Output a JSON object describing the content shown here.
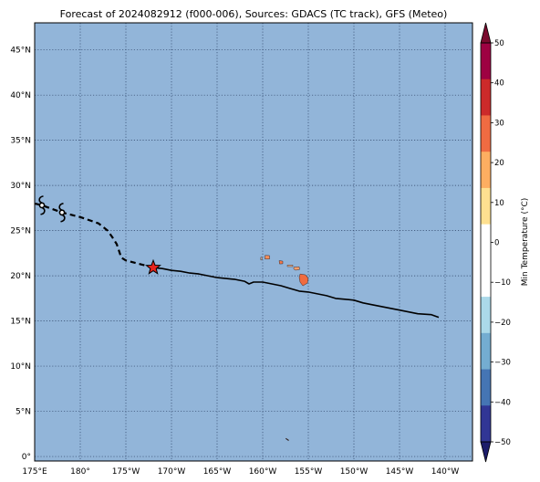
{
  "title": "Forecast of 2024082912 (f000-006), Sources: GDACS (TC track), GFS (Meteo)",
  "map": {
    "lon_range": [
      -185,
      -137
    ],
    "lat_range": [
      -0.5,
      48
    ],
    "grid": "dotted",
    "ocean_color": "#92b5d9",
    "lat_ticks": [
      0,
      5,
      10,
      15,
      20,
      25,
      30,
      35,
      40,
      45
    ],
    "lat_tick_labels": [
      "0°",
      "5°N",
      "10°N",
      "15°N",
      "20°N",
      "25°N",
      "30°N",
      "35°N",
      "40°N",
      "45°N"
    ],
    "lon_ticks": [
      -185,
      -180,
      -175,
      -170,
      -165,
      -160,
      -155,
      -150,
      -145,
      -140
    ],
    "lon_tick_labels": [
      "175°E",
      "180°",
      "175°W",
      "170°W",
      "165°W",
      "160°W",
      "155°W",
      "150°W",
      "145°W",
      "140°W"
    ]
  },
  "track": {
    "past": [
      [
        -140.7,
        15.4
      ],
      [
        -141.5,
        15.7
      ],
      [
        -143,
        15.8
      ],
      [
        -145,
        16.2
      ],
      [
        -148,
        16.8
      ],
      [
        -149,
        17.0
      ],
      [
        -150,
        17.3
      ],
      [
        -151,
        17.4
      ],
      [
        -152,
        17.5
      ],
      [
        -153,
        17.8
      ],
      [
        -154,
        18.0
      ],
      [
        -155,
        18.2
      ],
      [
        -156,
        18.3
      ],
      [
        -157,
        18.6
      ],
      [
        -158,
        18.9
      ],
      [
        -159,
        19.1
      ],
      [
        -160,
        19.3
      ],
      [
        -161,
        19.3
      ],
      [
        -161.5,
        19.1
      ],
      [
        -162,
        19.4
      ],
      [
        -163,
        19.6
      ],
      [
        -165,
        19.8
      ],
      [
        -166,
        20.0
      ],
      [
        -167,
        20.2
      ],
      [
        -168,
        20.3
      ],
      [
        -169,
        20.5
      ],
      [
        -170,
        20.6
      ],
      [
        -171,
        20.8
      ],
      [
        -172,
        20.9
      ]
    ],
    "forecast": [
      [
        -172,
        20.9
      ],
      [
        -173.5,
        21.3
      ],
      [
        -175,
        21.7
      ],
      [
        -175.5,
        22.0
      ],
      [
        -176,
        23.5
      ],
      [
        -176.5,
        24.3
      ],
      [
        -177,
        25.0
      ],
      [
        -178,
        25.8
      ],
      [
        -180,
        26.5
      ],
      [
        -182,
        27.0
      ],
      [
        -184.2,
        27.8
      ],
      [
        -185,
        28.0
      ]
    ],
    "current_position": [
      -172,
      20.9
    ],
    "symbol_positions": [
      [
        -182,
        27.0
      ],
      [
        -184.2,
        27.8
      ]
    ],
    "marker_colors": {
      "current": "#e8231c"
    }
  },
  "islands": [
    {
      "name": "Hawaii",
      "lon": -155.5,
      "lat": 19.6,
      "color": "#f06b3f"
    },
    {
      "name": "Maui",
      "lon": -156.3,
      "lat": 20.8,
      "color": "#fc9e6a"
    },
    {
      "name": "Molokai",
      "lon": -157.0,
      "lat": 21.1,
      "color": "#fdb98b"
    },
    {
      "name": "Oahu",
      "lon": -158.0,
      "lat": 21.5,
      "color": "#f57a4b"
    },
    {
      "name": "Kauai",
      "lon": -159.5,
      "lat": 22.05,
      "color": "#f78e59"
    },
    {
      "name": "Niihau",
      "lon": -160.15,
      "lat": 21.9,
      "color": "#fdcfa3"
    },
    {
      "name": "Johnston",
      "lon": -157.3,
      "lat": 1.9,
      "color": "#222222"
    }
  ],
  "colorbar": {
    "label": "Min Temperature (°C)",
    "ticks": [
      50,
      40,
      30,
      20,
      10,
      0,
      -10,
      -20,
      -30,
      -40,
      -50
    ],
    "tick_labels": [
      "50",
      "40",
      "30",
      "20",
      "10",
      "0",
      "−10",
      "−20",
      "−30",
      "−40",
      "−50"
    ],
    "colors": [
      "#9e0142",
      "#cc2a2a",
      "#f06b42",
      "#fdae61",
      "#fee090",
      "#ffffff",
      "#ffffff",
      "#abd9e9",
      "#74add1",
      "#4575b4",
      "#313695"
    ],
    "over_color": "#7a0a2e",
    "under_color": "#1c1c6a"
  },
  "chart_data": {
    "type": "map",
    "title": "Forecast of 2024082912 (f000-006), Sources: GDACS (TC track), GFS (Meteo)",
    "xlim": [
      -185,
      -137
    ],
    "ylim": [
      -0.5,
      48
    ],
    "grid": true,
    "colorbar_label": "Min Temperature (°C)",
    "colorbar_range": [
      -50,
      50
    ]
  }
}
